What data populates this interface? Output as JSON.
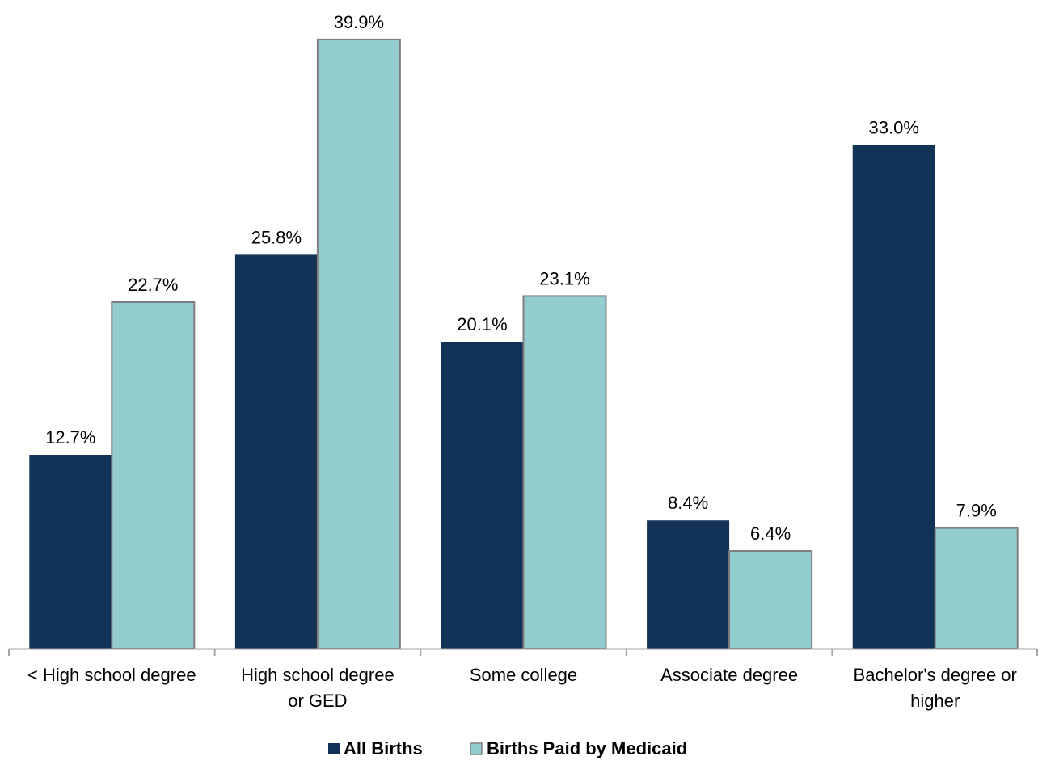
{
  "chart_data": {
    "type": "bar",
    "categories": [
      [
        "< High school degree"
      ],
      [
        "High school degree",
        "or GED"
      ],
      [
        "Some college"
      ],
      [
        "Associate degree"
      ],
      [
        "Bachelor's degree or",
        "higher"
      ]
    ],
    "series": [
      {
        "name": "All Births",
        "values": [
          12.7,
          25.8,
          20.1,
          8.4,
          33.0
        ],
        "labels": [
          "12.7%",
          "25.8%",
          "20.1%",
          "8.4%",
          "33.0%"
        ],
        "color": "#133257"
      },
      {
        "name": "Births Paid by Medicaid",
        "values": [
          22.7,
          39.9,
          23.1,
          6.4,
          7.9
        ],
        "labels": [
          "22.7%",
          "39.9%",
          "23.1%",
          "6.4%",
          "7.9%"
        ],
        "color": "#94cdd0",
        "stroke": "#7f7f7f"
      }
    ],
    "ylim": [
      0,
      40
    ],
    "grid": false,
    "legend": "bottom-center",
    "title": "",
    "xlabel": "",
    "ylabel": ""
  }
}
